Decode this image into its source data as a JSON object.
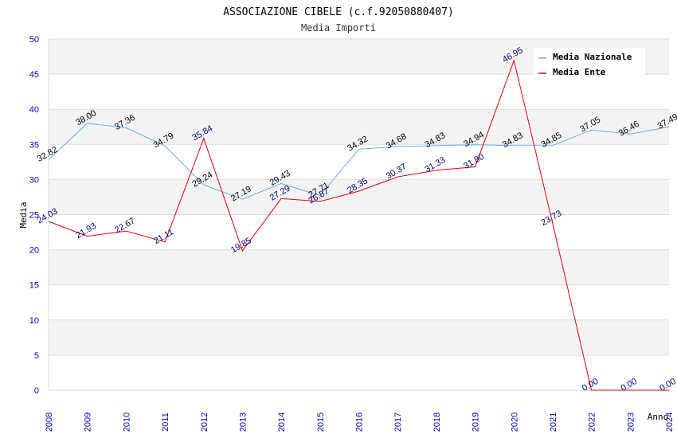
{
  "chart_data": {
    "type": "line",
    "title": "ASSOCIAZIONE CIBELE (c.f.92050880407)",
    "subtitle": "Media Importi",
    "xlabel": "Anno",
    "ylabel": "Media",
    "ylim": [
      0,
      50
    ],
    "yticks": [
      "0",
      "5",
      "10",
      "15",
      "20",
      "25",
      "30",
      "35",
      "40",
      "45",
      "50"
    ],
    "categories": [
      "2008",
      "2009",
      "2010",
      "2011",
      "2012",
      "2013",
      "2014",
      "2015",
      "2016",
      "2017",
      "2018",
      "2019",
      "2020",
      "2021",
      "2022",
      "2023",
      "2024"
    ],
    "series": [
      {
        "name": "Media Nazionale",
        "color": "#66aaee",
        "values": [
          32.82,
          38.0,
          37.36,
          34.79,
          29.24,
          27.19,
          29.43,
          27.71,
          34.32,
          34.68,
          34.83,
          34.94,
          34.83,
          34.85,
          37.05,
          36.46,
          37.49
        ],
        "labels": [
          "32.82",
          "38.00",
          "37.36",
          "34.79",
          "29.24",
          "27.19",
          "29.43",
          "27.71",
          "34.32",
          "34.68",
          "34.83",
          "34.94",
          "34.83",
          "34.85",
          "37.05",
          "36.46",
          "37.49"
        ]
      },
      {
        "name": "Media Ente",
        "color": "#ee0000",
        "values": [
          24.03,
          21.93,
          22.67,
          21.11,
          35.84,
          19.85,
          27.29,
          26.87,
          28.35,
          30.37,
          31.33,
          31.8,
          46.95,
          23.73,
          0.0,
          0.0,
          0.0
        ],
        "labels": [
          "24.03",
          "21.93",
          "22.67",
          "21.11",
          "35.84",
          "19.85",
          "27.29",
          "26.87",
          "28.35",
          "30.37",
          "31.33",
          "31.80",
          "46.95",
          "23.73",
          "0.00",
          "0.00",
          "0.00"
        ]
      }
    ],
    "legend_position": "top-right",
    "grid": true
  }
}
